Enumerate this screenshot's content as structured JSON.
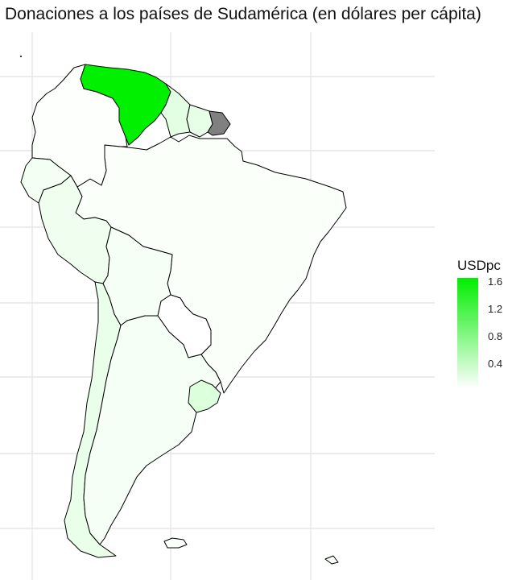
{
  "title": "Donaciones a los países de Sudamérica (en dólares per cápita)",
  "legend": {
    "title": "USDpc",
    "ticks": [
      "1.6",
      "1.2",
      "0.8",
      "0.4"
    ],
    "color_high": "#00ee00",
    "color_low": "#ffffff",
    "color_missing": "#808080"
  },
  "map": {
    "type": "choropleth",
    "region": "Sudamérica"
  }
}
